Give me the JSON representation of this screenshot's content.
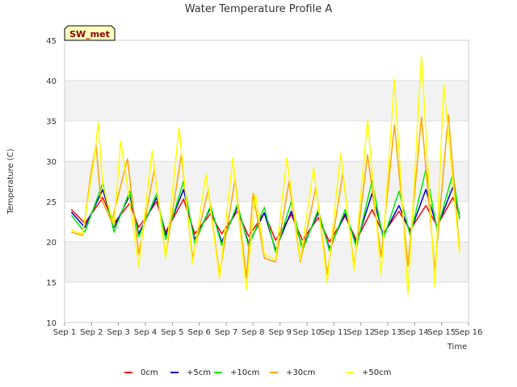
{
  "chart_data": {
    "type": "line",
    "title": "Water Temperature Profile A",
    "xlabel": "Time",
    "ylabel": "Temperature (C)",
    "ylim": [
      10,
      45
    ],
    "xlim": [
      "2023-09-01",
      "2023-09-16"
    ],
    "x_tick_labels": [
      "Sep 1",
      "Sep 2",
      "Sep 3",
      "Sep 4",
      "Sep 5",
      "Sep 6",
      "Sep 7",
      "Sep 8",
      "Sep 9",
      "Sep 10",
      "Sep 11",
      "Sep 12",
      "Sep 13",
      "Sep 14",
      "Sep 15",
      "Sep 16"
    ],
    "y_ticks": [
      10,
      15,
      20,
      25,
      30,
      35,
      40,
      45
    ],
    "grid": "horizontal bands",
    "legend_position": "bottom",
    "annotation": "SW_met",
    "series": [
      {
        "name": "0cm",
        "color": "#ff0000",
        "x": [
          "2023-09-01 06:00",
          "2023-09-01 18:00",
          "2023-09-02 10:00",
          "2023-09-02 20:00",
          "2023-09-03 10:00",
          "2023-09-03 18:00",
          "2023-09-04 10:00",
          "2023-09-04 18:00",
          "2023-09-05 10:00",
          "2023-09-05 20:00",
          "2023-09-06 10:00",
          "2023-09-06 20:00",
          "2023-09-07 10:00",
          "2023-09-07 20:00",
          "2023-09-08 10:00",
          "2023-09-08 20:00",
          "2023-09-09 10:00",
          "2023-09-09 20:00",
          "2023-09-10 10:00",
          "2023-09-10 20:00",
          "2023-09-11 10:00",
          "2023-09-11 20:00",
          "2023-09-12 10:00",
          "2023-09-12 20:00",
          "2023-09-13 10:00",
          "2023-09-13 20:00",
          "2023-09-14 10:00",
          "2023-09-14 20:00",
          "2023-09-15 10:00",
          "2023-09-15 16:00"
        ],
        "values": [
          24.0,
          22.3,
          25.5,
          22.3,
          24.8,
          21.8,
          25.0,
          21.2,
          25.3,
          21.0,
          23.5,
          21.0,
          23.8,
          20.7,
          23.6,
          20.2,
          23.4,
          20.2,
          23.0,
          20.0,
          23.2,
          20.2,
          24.0,
          21.0,
          23.8,
          21.5,
          24.5,
          22.0,
          25.5,
          23.5
        ]
      },
      {
        "name": "+5cm",
        "color": "#0000cc",
        "x": [
          "2023-09-01 06:00",
          "2023-09-01 18:00",
          "2023-09-02 10:00",
          "2023-09-02 20:00",
          "2023-09-03 10:00",
          "2023-09-03 18:00",
          "2023-09-04 10:00",
          "2023-09-04 18:00",
          "2023-09-05 10:00",
          "2023-09-05 20:00",
          "2023-09-06 10:00",
          "2023-09-06 20:00",
          "2023-09-07 10:00",
          "2023-09-07 20:00",
          "2023-09-08 10:00",
          "2023-09-08 20:00",
          "2023-09-09 10:00",
          "2023-09-09 20:00",
          "2023-09-10 10:00",
          "2023-09-10 20:00",
          "2023-09-11 10:00",
          "2023-09-11 20:00",
          "2023-09-12 10:00",
          "2023-09-12 20:00",
          "2023-09-13 10:00",
          "2023-09-13 20:00",
          "2023-09-14 10:00",
          "2023-09-14 20:00",
          "2023-09-15 10:00",
          "2023-09-15 16:00"
        ],
        "values": [
          23.7,
          21.8,
          26.5,
          21.8,
          25.8,
          21.0,
          25.5,
          20.8,
          26.5,
          20.3,
          24.2,
          20.0,
          24.3,
          19.8,
          23.6,
          19.0,
          23.8,
          19.3,
          23.6,
          19.2,
          23.5,
          19.8,
          26.0,
          20.8,
          24.5,
          21.2,
          26.5,
          21.8,
          26.8,
          23.0
        ]
      },
      {
        "name": "+10cm",
        "color": "#00ee00",
        "x": [
          "2023-09-01 06:00",
          "2023-09-01 18:00",
          "2023-09-02 10:00",
          "2023-09-02 20:00",
          "2023-09-03 10:00",
          "2023-09-03 18:00",
          "2023-09-04 10:00",
          "2023-09-04 18:00",
          "2023-09-05 10:00",
          "2023-09-05 20:00",
          "2023-09-06 10:00",
          "2023-09-06 20:00",
          "2023-09-07 10:00",
          "2023-09-07 20:00",
          "2023-09-08 10:00",
          "2023-09-08 20:00",
          "2023-09-09 10:00",
          "2023-09-09 20:00",
          "2023-09-10 10:00",
          "2023-09-10 20:00",
          "2023-09-11 10:00",
          "2023-09-11 20:00",
          "2023-09-12 10:00",
          "2023-09-12 20:00",
          "2023-09-13 10:00",
          "2023-09-13 20:00",
          "2023-09-14 10:00",
          "2023-09-14 20:00",
          "2023-09-15 10:00",
          "2023-09-15 16:00"
        ],
        "values": [
          23.3,
          21.2,
          27.3,
          21.2,
          26.3,
          20.6,
          26.0,
          20.3,
          27.5,
          19.8,
          24.5,
          19.6,
          24.7,
          19.4,
          24.3,
          18.7,
          25.0,
          18.9,
          24.0,
          18.9,
          24.0,
          19.3,
          27.6,
          20.3,
          26.3,
          20.8,
          29.0,
          21.5,
          28.5,
          22.8
        ]
      },
      {
        "name": "+30cm",
        "color": "#ffa500",
        "x": [
          "2023-09-01 06:00",
          "2023-09-01 16:00",
          "2023-09-02 00:00",
          "2023-09-02 04:00",
          "2023-09-02 08:00",
          "2023-09-02 18:00",
          "2023-09-03 08:00",
          "2023-09-03 18:00",
          "2023-09-04 08:00",
          "2023-09-04 18:00",
          "2023-09-05 08:00",
          "2023-09-05 18:00",
          "2023-09-06 08:00",
          "2023-09-06 18:00",
          "2023-09-07 08:00",
          "2023-09-07 18:00",
          "2023-09-08 00:00",
          "2023-09-08 10:00",
          "2023-09-08 20:00",
          "2023-09-09 08:00",
          "2023-09-09 18:00",
          "2023-09-10 08:00",
          "2023-09-10 18:00",
          "2023-09-11 08:00",
          "2023-09-11 18:00",
          "2023-09-12 06:00",
          "2023-09-12 18:00",
          "2023-09-13 06:00",
          "2023-09-13 18:00",
          "2023-09-14 06:00",
          "2023-09-14 18:00",
          "2023-09-15 06:00",
          "2023-09-15 16:00"
        ],
        "values": [
          21.2,
          20.8,
          29.0,
          32.0,
          25.5,
          22.5,
          30.3,
          18.5,
          29.0,
          18.2,
          30.8,
          18.0,
          26.5,
          16.0,
          27.8,
          15.5,
          26.0,
          18.0,
          17.5,
          27.5,
          17.5,
          26.8,
          16.0,
          28.5,
          17.0,
          30.8,
          18.2,
          34.5,
          17.0,
          35.5,
          16.5,
          35.8,
          19.0
        ]
      },
      {
        "name": "+50cm",
        "color": "#ffff00",
        "x": [
          "2023-09-01 06:00",
          "2023-09-01 16:00",
          "2023-09-02 02:00",
          "2023-09-02 06:00",
          "2023-09-02 10:00",
          "2023-09-02 20:00",
          "2023-09-03 02:00",
          "2023-09-03 08:00",
          "2023-09-03 18:00",
          "2023-09-04 06:00",
          "2023-09-04 18:00",
          "2023-09-05 06:00",
          "2023-09-05 18:00",
          "2023-09-06 06:00",
          "2023-09-06 18:00",
          "2023-09-07 06:00",
          "2023-09-07 12:00",
          "2023-09-07 18:00",
          "2023-09-08 02:00",
          "2023-09-08 10:00",
          "2023-09-08 20:00",
          "2023-09-09 06:00",
          "2023-09-09 18:00",
          "2023-09-10 06:00",
          "2023-09-10 18:00",
          "2023-09-11 06:00",
          "2023-09-11 18:00",
          "2023-09-12 06:00",
          "2023-09-12 18:00",
          "2023-09-13 06:00",
          "2023-09-13 18:00",
          "2023-09-14 06:00",
          "2023-09-14 18:00",
          "2023-09-15 02:00",
          "2023-09-15 16:00"
        ],
        "values": [
          21.5,
          21.0,
          30.0,
          34.8,
          27.0,
          22.0,
          32.5,
          27.0,
          17.0,
          31.3,
          18.0,
          34.2,
          17.3,
          28.4,
          15.5,
          30.4,
          22.0,
          14.2,
          26.0,
          18.5,
          17.8,
          30.4,
          17.8,
          29.2,
          15.0,
          31.0,
          16.5,
          35.2,
          16.0,
          40.2,
          13.5,
          43.1,
          14.5,
          39.5,
          18.5
        ]
      }
    ]
  }
}
